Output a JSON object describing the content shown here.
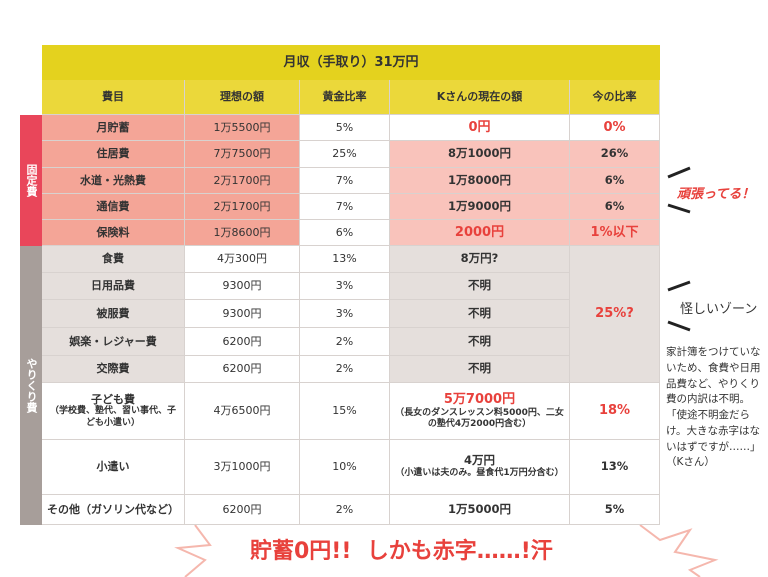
{
  "header": {
    "title": "月収（手取り）31万円",
    "columns": [
      "費目",
      "理想の額",
      "黄金比率",
      "Kさんの現在の額",
      "今の比率"
    ]
  },
  "groups": [
    "固定費",
    "やりくり費"
  ],
  "rows": [
    {
      "item": "月貯蓄",
      "ideal": "1万5500円",
      "golden": "5%",
      "current": "0円",
      "ratio": "0%"
    },
    {
      "item": "住居費",
      "ideal": "7万7500円",
      "golden": "25%",
      "current": "8万1000円",
      "ratio": "26%"
    },
    {
      "item": "水道・光熱費",
      "ideal": "2万1700円",
      "golden": "7%",
      "current": "1万8000円",
      "ratio": "6%"
    },
    {
      "item": "通信費",
      "ideal": "2万1700円",
      "golden": "7%",
      "current": "1万9000円",
      "ratio": "6%"
    },
    {
      "item": "保険料",
      "ideal": "1万8600円",
      "golden": "6%",
      "current": "2000円",
      "ratio": "1%以下"
    },
    {
      "item": "食費",
      "ideal": "4万300円",
      "golden": "13%",
      "current": "8万円?"
    },
    {
      "item": "日用品費",
      "ideal": "9300円",
      "golden": "3%",
      "current": "不明"
    },
    {
      "item": "被服費",
      "ideal": "9300円",
      "golden": "3%",
      "current": "不明"
    },
    {
      "item": "娯楽・レジャー費",
      "ideal": "6200円",
      "golden": "2%",
      "current": "不明"
    },
    {
      "item": "交際費",
      "ideal": "6200円",
      "golden": "2%",
      "current": "不明"
    },
    {
      "item": "子ども費",
      "item_note": "（学校費、塾代、習い事代、子ども小遣い）",
      "ideal": "4万6500円",
      "golden": "15%",
      "current": "5万7000円",
      "current_note": "（長女のダンスレッスン料5000円、二女の塾代4万2000円含む）",
      "ratio": "18%"
    },
    {
      "item": "小遣い",
      "ideal": "3万1000円",
      "golden": "10%",
      "current": "4万円",
      "current_note": "（小遣いは夫のみ。昼食代1万円分含む）",
      "ratio": "13%"
    },
    {
      "item": "その他（ガソリン代など）",
      "ideal": "6200円",
      "golden": "2%",
      "current": "1万5000円",
      "ratio": "5%"
    }
  ],
  "merged_ratio": "25%?",
  "annotations": {
    "fixed": "頑張ってる！",
    "variable": "怪しいゾーン",
    "comment": "家計簿をつけていないため、食費や日用品費など、やりくり費の内訳は不明。「使途不明金だらけ。大きな赤字はないはずですが……」（Kさん）"
  },
  "footer": "貯蓄0円!!  しかも赤字……!汗"
}
